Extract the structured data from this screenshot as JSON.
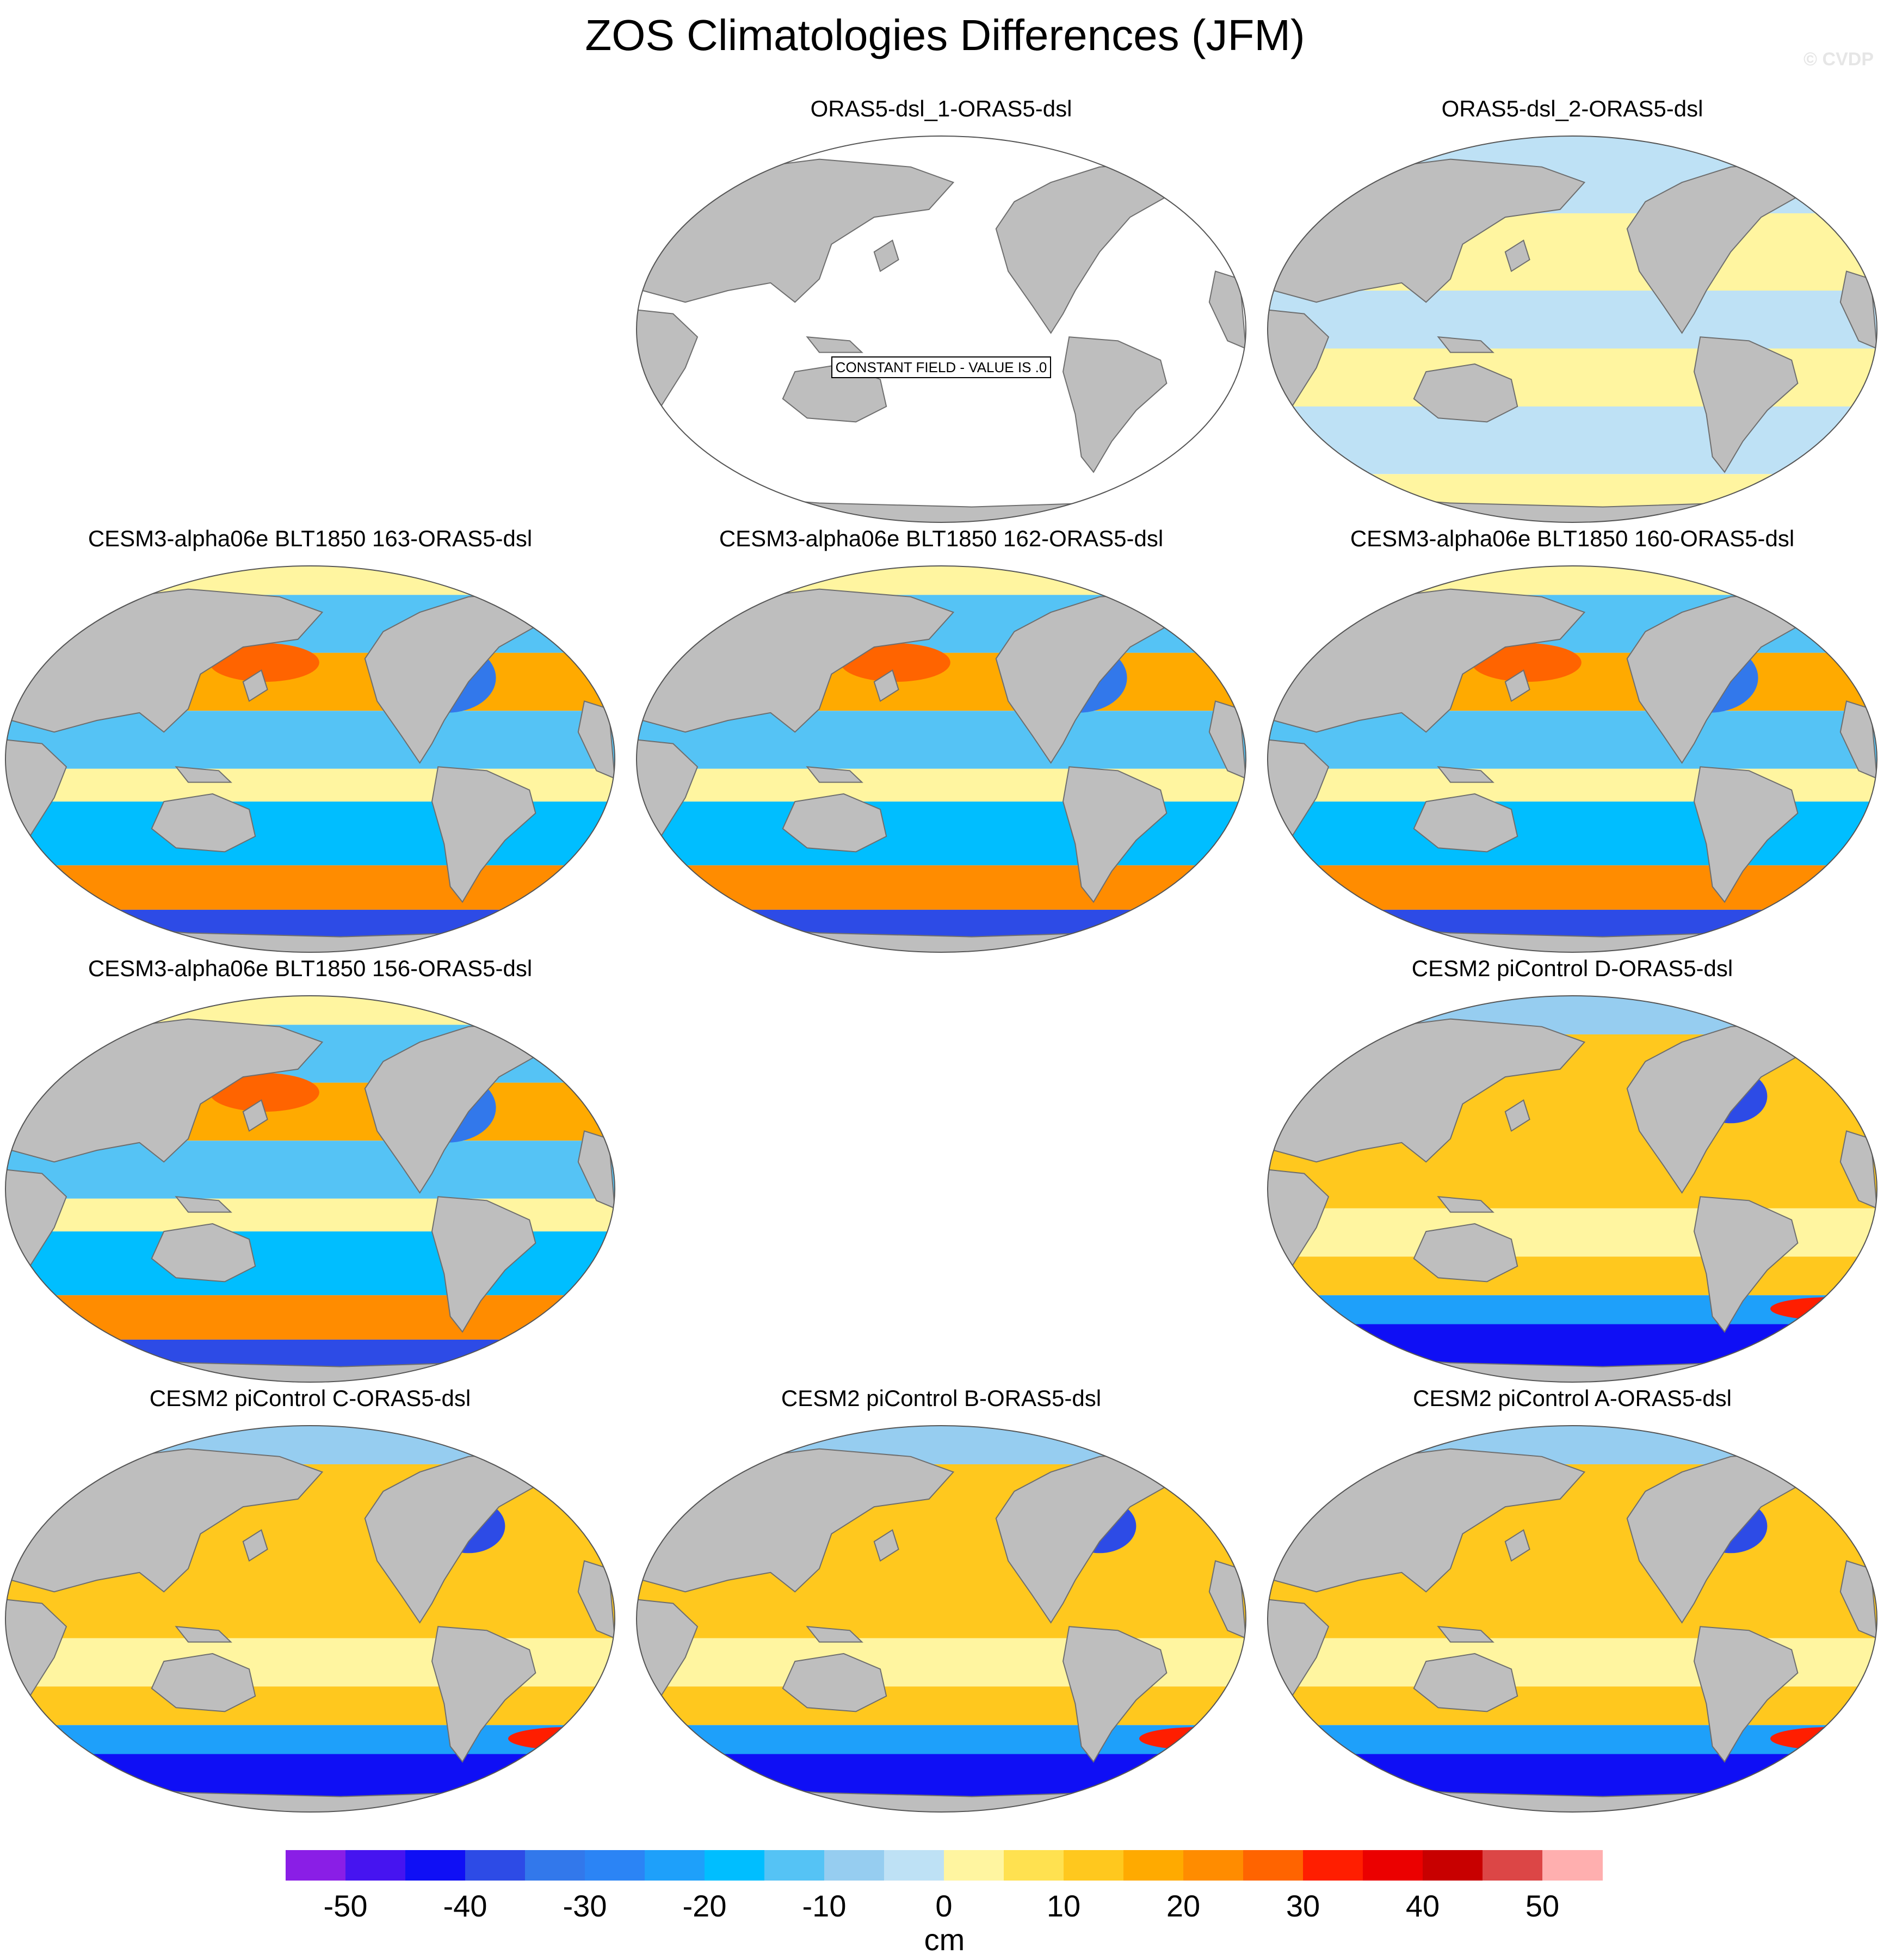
{
  "title": "ZOS Climatologies Differences (JFM)",
  "credit": "© CVDP",
  "panels": [
    {
      "label": "ORAS5-dsl_1-ORAS5-dsl",
      "row": 0,
      "col": 1,
      "field": "constant",
      "note": "CONSTANT FIELD - VALUE IS .0"
    },
    {
      "label": "ORAS5-dsl_2-ORAS5-dsl",
      "row": 0,
      "col": 2,
      "field": "near-zero"
    },
    {
      "label": "CESM3-alpha06e BLT1850 163-ORAS5-dsl",
      "row": 1,
      "col": 0,
      "field": "cesm3"
    },
    {
      "label": "CESM3-alpha06e BLT1850 162-ORAS5-dsl",
      "row": 1,
      "col": 1,
      "field": "cesm3"
    },
    {
      "label": "CESM3-alpha06e BLT1850 160-ORAS5-dsl",
      "row": 1,
      "col": 2,
      "field": "cesm3"
    },
    {
      "label": "CESM3-alpha06e BLT1850 156-ORAS5-dsl",
      "row": 2,
      "col": 0,
      "field": "cesm3"
    },
    {
      "label": "CESM2 piControl D-ORAS5-dsl",
      "row": 2,
      "col": 2,
      "field": "cesm2"
    },
    {
      "label": "CESM2 piControl C-ORAS5-dsl",
      "row": 3,
      "col": 0,
      "field": "cesm2"
    },
    {
      "label": "CESM2 piControl B-ORAS5-dsl",
      "row": 3,
      "col": 1,
      "field": "cesm2"
    },
    {
      "label": "CESM2 piControl A-ORAS5-dsl",
      "row": 3,
      "col": 2,
      "field": "cesm2"
    }
  ],
  "colorbar": {
    "units": "cm",
    "min": -55,
    "max": 55,
    "step": 5,
    "ticks": [
      -50,
      -40,
      -30,
      -20,
      -10,
      0,
      10,
      20,
      30,
      40,
      50
    ],
    "tick_labels": [
      "-50",
      "-40",
      "-30",
      "-20",
      "-10",
      "0",
      "10",
      "20",
      "30",
      "40",
      "50"
    ],
    "colors": [
      "#8a1ee6",
      "#4614f0",
      "#0f0ff5",
      "#2d4be6",
      "#3278eb",
      "#2b84f5",
      "#1ea0fa",
      "#00beff",
      "#55c3f5",
      "#96cdf0",
      "#bee1f5",
      "#fff5a0",
      "#ffe150",
      "#ffc81e",
      "#ffaa00",
      "#ff8c00",
      "#ff6400",
      "#ff1e00",
      "#eb0000",
      "#c80000",
      "#dc4646",
      "#ffafaf"
    ]
  },
  "colors": {
    "land": "#bebebe",
    "coastline": "#6e6e6e",
    "background": "#ffffff"
  }
}
